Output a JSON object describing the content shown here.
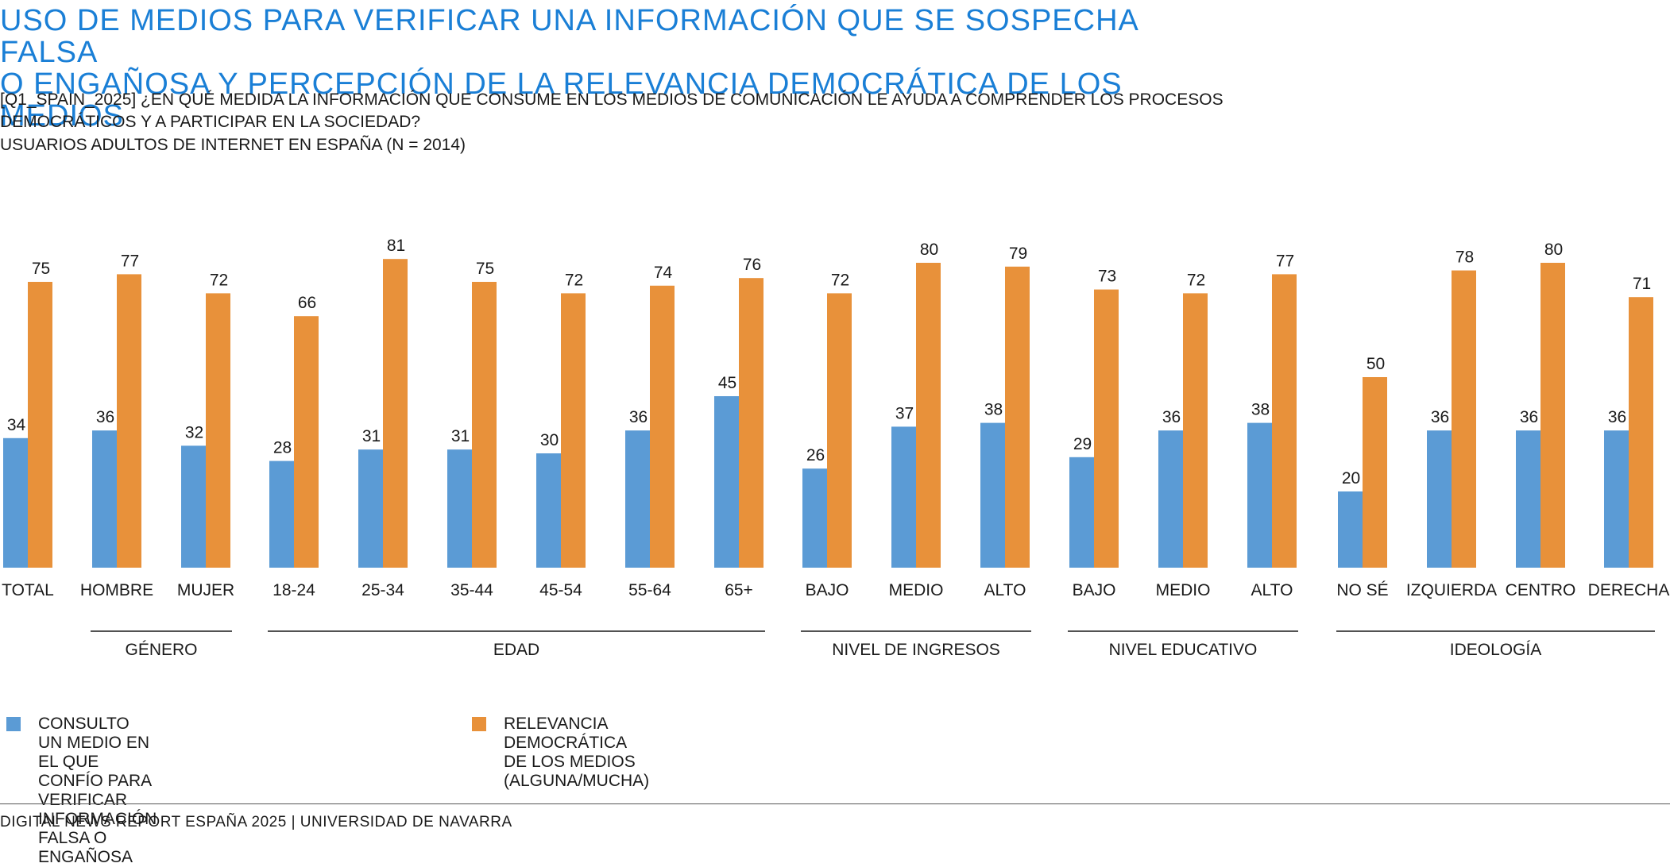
{
  "title_line1": "USO DE MEDIOS PARA VERIFICAR UNA INFORMACIÓN QUE SE SOSPECHA FALSA",
  "title_line2": "O ENGAÑOSA Y PERCEPCIÓN DE LA RELEVANCIA DEMOCRÁTICA DE LOS MEDIOS",
  "question": "[Q1_SPAIN_2025] ¿EN QUÉ MEDIDA LA INFORMACIÓN QUE CONSUME EN LOS MEDIOS DE COMUNICACIÓN LE AYUDA A COMPRENDER LOS PROCESOS DEMOCRÁTICOS Y A PARTICIPAR EN LA SOCIEDAD?",
  "base": "USUARIOS ADULTOS DE INTERNET EN ESPAÑA (N = 2014)",
  "footer": "DIGITAL NEWS REPORT ESPAÑA 2025 | UNIVERSIDAD DE NAVARRA",
  "colors": {
    "blue": "#5b9bd5",
    "orange": "#e8913a",
    "title": "#1a7fd6"
  },
  "legend": {
    "blue_label": "CONSULTO UN MEDIO EN EL QUE CONFÍO PARA\nVERIFICAR INFORMACIÓN FALSA O ENGAÑOSA",
    "orange_label": "RELEVANCIA DEMOCRÁTICA DE LOS MEDIOS\n(ALGUNA/MUCHA)"
  },
  "chart_data": {
    "type": "bar",
    "categories": [
      "TOTAL",
      "HOMBRE",
      "MUJER",
      "18-24",
      "25-34",
      "35-44",
      "45-54",
      "55-64",
      "65+",
      "BAJO",
      "MEDIO",
      "ALTO",
      "BAJO",
      "MEDIO",
      "ALTO",
      "NO SÉ",
      "IZQUIERDA",
      "CENTRO",
      "DERECHA"
    ],
    "series": [
      {
        "name": "CONSULTO UN MEDIO EN EL QUE CONFÍO PARA VERIFICAR INFORMACIÓN FALSA O ENGAÑOSA",
        "color": "#5b9bd5",
        "values": [
          34,
          36,
          32,
          28,
          31,
          31,
          30,
          36,
          45,
          26,
          37,
          38,
          29,
          36,
          38,
          20,
          36,
          36,
          36
        ]
      },
      {
        "name": "RELEVANCIA DEMOCRÁTICA DE LOS MEDIOS (ALGUNA/MUCHA)",
        "color": "#e8913a",
        "values": [
          75,
          77,
          72,
          66,
          81,
          75,
          72,
          74,
          76,
          72,
          80,
          79,
          73,
          72,
          77,
          50,
          78,
          80,
          71
        ]
      }
    ],
    "groups": [
      {
        "label": "GÉNERO",
        "from": 1,
        "to": 2
      },
      {
        "label": "EDAD",
        "from": 3,
        "to": 8
      },
      {
        "label": "NIVEL DE INGRESOS",
        "from": 9,
        "to": 11
      },
      {
        "label": "NIVEL EDUCATIVO",
        "from": 12,
        "to": 14
      },
      {
        "label": "IDEOLOGÍA",
        "from": 15,
        "to": 18
      }
    ],
    "ylim": [
      0,
      100
    ],
    "grid": false,
    "legend_position": "bottom-left"
  }
}
